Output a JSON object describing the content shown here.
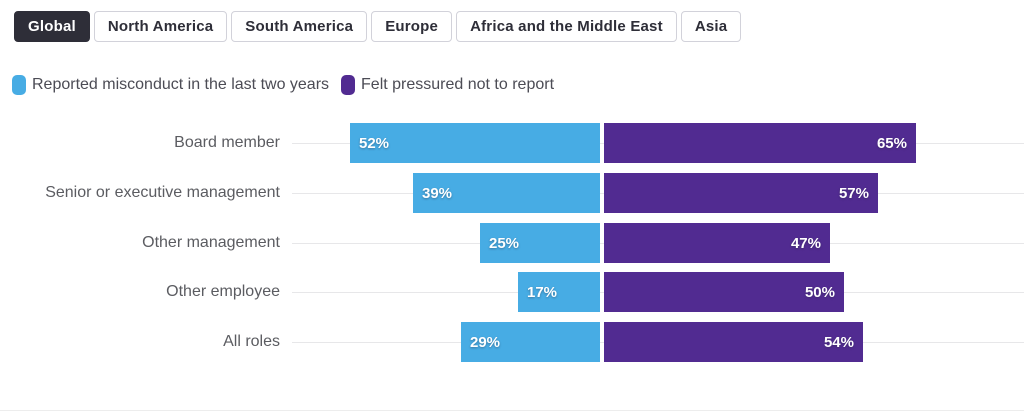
{
  "tabs": {
    "items": [
      {
        "label": "Global",
        "active": true
      },
      {
        "label": "North America",
        "active": false
      },
      {
        "label": "South America",
        "active": false
      },
      {
        "label": "Europe",
        "active": false
      },
      {
        "label": "Africa and the Middle East",
        "active": false
      },
      {
        "label": "Asia",
        "active": false
      }
    ]
  },
  "legend": {
    "items": [
      {
        "label": "Reported misconduct in the last two years",
        "color": "#47ACE4"
      },
      {
        "label": "Felt pressured not to report",
        "color": "#512B91"
      }
    ]
  },
  "chart_data": {
    "type": "bar",
    "variant": "diverging-horizontal",
    "categories": [
      "Board member",
      "Senior or executive management",
      "Other management",
      "Other employee",
      "All roles"
    ],
    "series": [
      {
        "name": "Reported misconduct in the last two years",
        "color": "#47ACE4",
        "side": "left",
        "values": [
          52,
          39,
          25,
          17,
          29
        ]
      },
      {
        "name": "Felt pressured not to report",
        "color": "#512B91",
        "side": "right",
        "values": [
          65,
          57,
          47,
          50,
          54
        ]
      }
    ],
    "value_suffix": "%",
    "value_labels": "inside-bar",
    "legend_position": "top",
    "grid": "row-lines",
    "xlim_left": [
      0,
      52
    ],
    "xlim_right": [
      0,
      65
    ]
  },
  "colors": {
    "active_tab_bg": "#2e2e38",
    "tab_border": "#d2d2da",
    "row_line": "#e7e7e9",
    "category_label": "#5b5c61"
  }
}
